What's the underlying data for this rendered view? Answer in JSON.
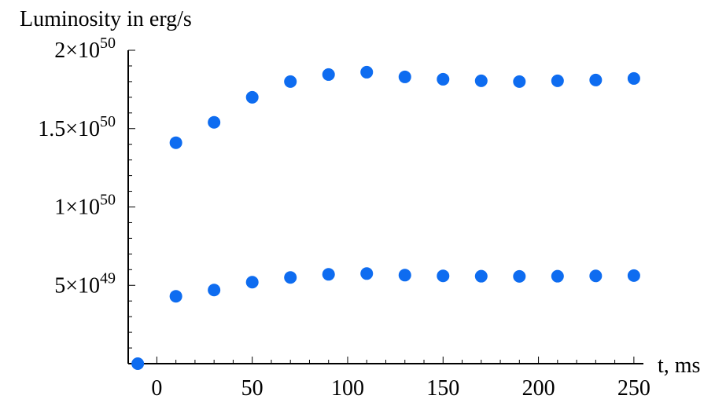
{
  "chart_data": {
    "type": "scatter",
    "title": "",
    "xlabel": "t, ms",
    "ylabel": "Luminosity in erg/s",
    "xlim": [
      -15,
      255
    ],
    "ylim": [
      0,
      2e+50
    ],
    "grid": false,
    "x_ticks": [
      {
        "value": 0,
        "label": "0"
      },
      {
        "value": 50,
        "label": "50"
      },
      {
        "value": 100,
        "label": "100"
      },
      {
        "value": 150,
        "label": "150"
      },
      {
        "value": 200,
        "label": "200"
      },
      {
        "value": 250,
        "label": "250"
      }
    ],
    "y_ticks": [
      {
        "value": 5e+49,
        "mantissa": "5",
        "exponent": "49"
      },
      {
        "value": 1e+50,
        "mantissa": "1",
        "exponent": "50"
      },
      {
        "value": 1.5e+50,
        "mantissa": "1.5",
        "exponent": "50"
      },
      {
        "value": 2e+50,
        "mantissa": "2",
        "exponent": "50"
      }
    ],
    "marker_color": "#0e6cf0",
    "series": [
      {
        "x": [
          10,
          30,
          50,
          70,
          90,
          110,
          130,
          150,
          170,
          190,
          210,
          230,
          250
        ],
        "values": [
          1.41e+50,
          1.54e+50,
          1.7e+50,
          1.8e+50,
          1.845e+50,
          1.86e+50,
          1.83e+50,
          1.815e+50,
          1.805e+50,
          1.8e+50,
          1.805e+50,
          1.81e+50,
          1.82e+50
        ]
      },
      {
        "x": [
          -10,
          10,
          30,
          50,
          70,
          90,
          110,
          130,
          150,
          170,
          190,
          210,
          230,
          250
        ],
        "values": [
          0,
          4.3e+49,
          4.7e+49,
          5.2e+49,
          5.5e+49,
          5.7e+49,
          5.75e+49,
          5.65e+49,
          5.6e+49,
          5.58e+49,
          5.57e+49,
          5.58e+49,
          5.6e+49,
          5.62e+49
        ]
      }
    ]
  }
}
